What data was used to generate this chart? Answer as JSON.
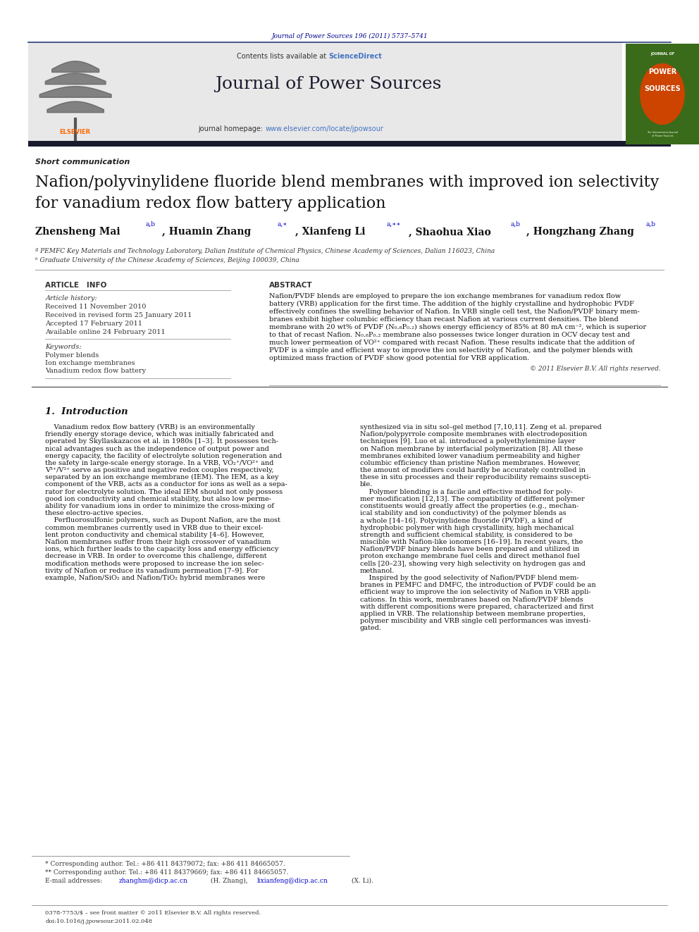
{
  "page_width": 9.92,
  "page_height": 13.23,
  "background_color": "#ffffff",
  "journal_ref": "Journal of Power Sources 196 (2011) 5737–5741",
  "journal_ref_color": "#00008B",
  "header_bg_color": "#e8e8e8",
  "journal_name": "Journal of Power Sources",
  "contents_text": "Contents lists available at ",
  "science_direct": "ScienceDirect",
  "science_direct_color": "#4472c4",
  "homepage_text": "journal homepage: ",
  "homepage_url": "www.elsevier.com/locate/jpowsour",
  "homepage_url_color": "#4472c4",
  "elsevier_color": "#FF6600",
  "article_type": "Short communication",
  "title_line1": "Nafion/polyvinylidene fluoride blend membranes with improved ion selectivity",
  "title_line2": "for vanadium redox flow battery application",
  "affil1": "ª PEMFC Key Materials and Technology Laboratory, Dalian Institute of Chemical Physics, Chinese Academy of Sciences, Dalian 116023, China",
  "affil2": "ᵇ Graduate University of the Chinese Academy of Sciences, Beijing 100039, China",
  "article_info_title": "ARTICLE   INFO",
  "abstract_title": "ABSTRACT",
  "article_history_label": "Article history:",
  "received": "Received 11 November 2010",
  "revised": "Received in revised form 25 January 2011",
  "accepted": "Accepted 17 February 2011",
  "available": "Available online 24 February 2011",
  "keywords_label": "Keywords:",
  "keyword1": "Polymer blends",
  "keyword2": "Ion exchange membranes",
  "keyword3": "Vanadium redox flow battery",
  "copyright": "© 2011 Elsevier B.V. All rights reserved.",
  "intro_title": "1.  Introduction",
  "footnote1": "* Corresponding author. Tel.: +86 411 84379072; fax: +86 411 84665057.",
  "footnote2": "** Corresponding author. Tel.: +86 411 84379669; fax: +86 411 84665057.",
  "footer_left": "0378-7753/$ – see front matter © 2011 Elsevier B.V. All rights reserved.",
  "footer_doi": "doi:10.1016/j.jpowsour.2011.02.048",
  "abstract_lines": [
    "Nafion/PVDF blends are employed to prepare the ion exchange membranes for vanadium redox flow",
    "battery (VRB) application for the first time. The addition of the highly crystalline and hydrophobic PVDF",
    "effectively confines the swelling behavior of Nafion. In VRB single cell test, the Nafion/PVDF binary mem-",
    "branes exhibit higher columbic efficiency than recast Nafion at various current densities. The blend",
    "membrane with 20 wt% of PVDF (N₀.₈P₀.₂) shows energy efficiency of 85% at 80 mA cm⁻², which is superior",
    "to that of recast Nafion. N₀.₈P₀.₂ membrane also possesses twice longer duration in OCV decay test and",
    "much lower permeation of VO²⁺ compared with recast Nafion. These results indicate that the addition of",
    "PVDF is a simple and efficient way to improve the ion selectivity of Nafion, and the polymer blends with",
    "optimized mass fraction of PVDF show good potential for VRB application."
  ],
  "intro1_lines": [
    "    Vanadium redox flow battery (VRB) is an environmentally",
    "friendly energy storage device, which was initially fabricated and",
    "operated by Skyllaskazacos et al. in 1980s [1–3]. It possesses tech-",
    "nical advantages such as the independence of output power and",
    "energy capacity, the facility of electrolyte solution regeneration and",
    "the safety in large-scale energy storage. In a VRB, VO₂⁺/VO²⁺ and",
    "V³⁺/V²⁺ serve as positive and negative redox couples respectively,",
    "separated by an ion exchange membrane (IEM). The IEM, as a key",
    "component of the VRB, acts as a conductor for ions as well as a sepa-",
    "rator for electrolyte solution. The ideal IEM should not only possess",
    "good ion conductivity and chemical stability, but also low perme-",
    "ability for vanadium ions in order to minimize the cross-mixing of",
    "these electro-active species.",
    "    Perfluorosulfonic polymers, such as Dupont Nafion, are the most",
    "common membranes currently used in VRB due to their excel-",
    "lent proton conductivity and chemical stability [4–6]. However,",
    "Nafion membranes suffer from their high crossover of vanadium",
    "ions, which further leads to the capacity loss and energy efficiency",
    "decrease in VRB. In order to overcome this challenge, different",
    "modification methods were proposed to increase the ion selec-",
    "tivity of Nafion or reduce its vanadium permeation [7–9]. For",
    "example, Nafion/SiO₂ and Nafion/TiO₂ hybrid membranes were"
  ],
  "intro2_lines": [
    "synthesized via in situ sol–gel method [7,10,11]. Zeng et al. prepared",
    "Nafion/polypyrrole composite membranes with electrodeposition",
    "techniques [9]. Luo et al. introduced a polyethylenimine layer",
    "on Nafion membrane by interfacial polymerization [8]. All these",
    "membranes exhibited lower vanadium permeability and higher",
    "columbic efficiency than pristine Nafion membranes. However,",
    "the amount of modifiers could hardly be accurately controlled in",
    "these in situ processes and their reproducibility remains suscepti-",
    "ble.",
    "    Polymer blending is a facile and effective method for poly-",
    "mer modification [12,13]. The compatibility of different polymer",
    "constituents would greatly affect the properties (e.g., mechan-",
    "ical stability and ion conductivity) of the polymer blends as",
    "a whole [14–16]. Polyvinylidene fluoride (PVDF), a kind of",
    "hydrophobic polymer with high crystallinity, high mechanical",
    "strength and sufficient chemical stability, is considered to be",
    "miscible with Nafion-like ionomers [16–19]. In recent years, the",
    "Nafion/PVDF binary blends have been prepared and utilized in",
    "proton exchange membrane fuel cells and direct methanol fuel",
    "cells [20–23], showing very high selectivity on hydrogen gas and",
    "methanol.",
    "    Inspired by the good selectivity of Nafion/PVDF blend mem-",
    "branes in PEMFC and DMFC, the introduction of PVDF could be an",
    "efficient way to improve the ion selectivity of Nafion in VRB appli-",
    "cations. In this work, membranes based on Nafion/PVDF blends",
    "with different compositions were prepared, characterized and first",
    "applied in VRB. The relationship between membrane properties,",
    "polymer miscibility and VRB single cell performances was investi-",
    "gated."
  ]
}
